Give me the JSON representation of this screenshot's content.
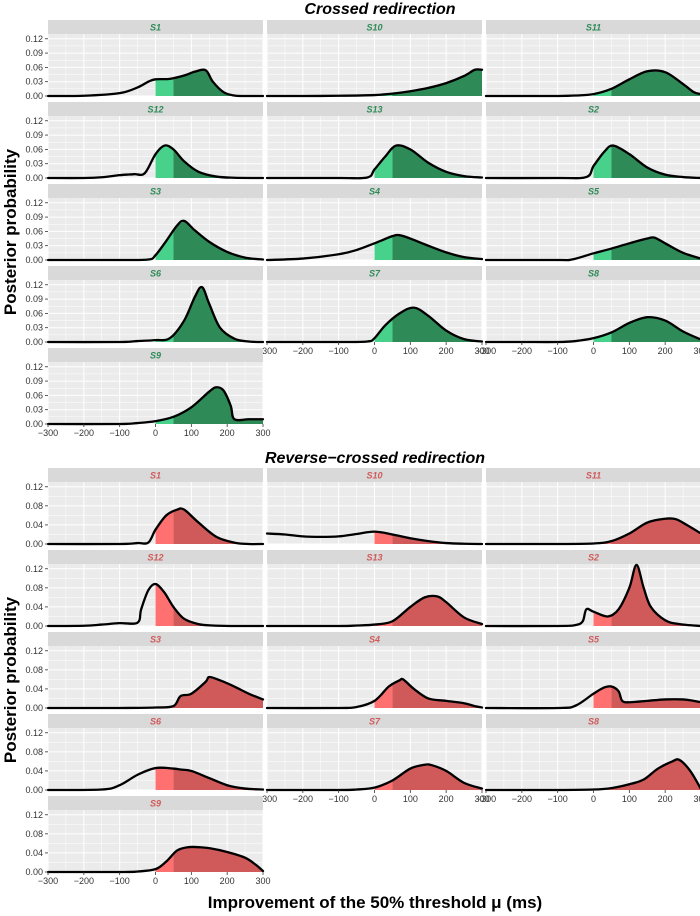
{
  "figure": {
    "ylabel": "Posterior probability",
    "xlabel": "Improvement of the 50% threshold μ (ms)"
  },
  "colors": {
    "panel_bg": "#ebebeb",
    "grid": "#ffffff",
    "strip_bg": "#d9d9d9",
    "crossed_dark": "#2e8b57",
    "crossed_light": "#48d18a",
    "crossed_label": "#2e8b57",
    "reverse_dark": "#d05a5a",
    "reverse_light": "#ff7070",
    "reverse_label": "#d05a5a",
    "curve": "#000000"
  },
  "chart_data": [
    {
      "type": "area",
      "title": "Crossed redirection",
      "xlabel": "Improvement of the 50% threshold μ (ms)",
      "ylabel": "Posterior probability",
      "xlim": [
        -300,
        300
      ],
      "ylim": [
        0,
        0.13
      ],
      "xticks": [
        -300,
        -200,
        -100,
        0,
        100,
        200,
        300
      ],
      "yticks": [
        0.0,
        0.03,
        0.06,
        0.09,
        0.12
      ],
      "ytick_labels": [
        "0.00",
        "0.03",
        "0.06",
        "0.09",
        "0.12"
      ],
      "shading": {
        "light_range": [
          0,
          50
        ],
        "dark_from": 50
      },
      "panels": [
        {
          "name": "S1",
          "x": [
            -300,
            -200,
            -100,
            -50,
            -20,
            0,
            40,
            80,
            110,
            140,
            160,
            190,
            220,
            250,
            300
          ],
          "y": [
            0,
            0.0005,
            0.006,
            0.018,
            0.03,
            0.035,
            0.036,
            0.043,
            0.051,
            0.054,
            0.03,
            0.008,
            0.001,
            0,
            0
          ]
        },
        {
          "name": "S10",
          "x": [
            -300,
            -200,
            -100,
            0,
            50,
            100,
            150,
            200,
            250,
            280,
            300
          ],
          "y": [
            0,
            0,
            0.0005,
            0.002,
            0.005,
            0.01,
            0.017,
            0.027,
            0.042,
            0.055,
            0.055
          ]
        },
        {
          "name": "S11",
          "x": [
            -300,
            -200,
            -100,
            -50,
            0,
            50,
            100,
            150,
            200,
            250,
            280,
            300
          ],
          "y": [
            0,
            0,
            0,
            0.001,
            0.004,
            0.015,
            0.035,
            0.052,
            0.05,
            0.025,
            0.008,
            0.004
          ]
        },
        {
          "name": "S12",
          "x": [
            -300,
            -200,
            -150,
            -100,
            -60,
            -30,
            0,
            25,
            50,
            80,
            120,
            170,
            220,
            300
          ],
          "y": [
            0,
            0,
            0.0015,
            0.006,
            0.008,
            0.01,
            0.05,
            0.068,
            0.06,
            0.035,
            0.013,
            0.003,
            0.0005,
            0
          ]
        },
        {
          "name": "S13",
          "x": [
            -300,
            -100,
            -20,
            0,
            30,
            60,
            100,
            150,
            200,
            250,
            300
          ],
          "y": [
            0,
            0,
            0.001,
            0.018,
            0.045,
            0.068,
            0.06,
            0.032,
            0.013,
            0.004,
            0.001
          ]
        },
        {
          "name": "S2",
          "x": [
            -300,
            -100,
            -20,
            0,
            30,
            55,
            100,
            150,
            200,
            250,
            300
          ],
          "y": [
            0,
            0,
            0.002,
            0.025,
            0.055,
            0.068,
            0.05,
            0.022,
            0.007,
            0.002,
            0
          ]
        },
        {
          "name": "S3",
          "x": [
            -300,
            -100,
            -20,
            0,
            30,
            60,
            80,
            110,
            150,
            200,
            250,
            300
          ],
          "y": [
            0,
            0,
            0.001,
            0.01,
            0.04,
            0.072,
            0.082,
            0.062,
            0.038,
            0.017,
            0.005,
            0.001
          ]
        },
        {
          "name": "S4",
          "x": [
            -300,
            -200,
            -100,
            -50,
            0,
            50,
            70,
            100,
            150,
            200,
            250,
            300
          ],
          "y": [
            0,
            0.003,
            0.012,
            0.021,
            0.035,
            0.05,
            0.052,
            0.045,
            0.03,
            0.016,
            0.006,
            0.002
          ]
        },
        {
          "name": "S5",
          "x": [
            -300,
            -100,
            -60,
            0,
            50,
            100,
            150,
            170,
            200,
            250,
            300
          ],
          "y": [
            0,
            0,
            0.001,
            0.014,
            0.024,
            0.035,
            0.045,
            0.047,
            0.035,
            0.015,
            0.003
          ]
        },
        {
          "name": "S6",
          "x": [
            -300,
            -100,
            -50,
            0,
            40,
            80,
            110,
            130,
            150,
            180,
            220,
            260,
            300
          ],
          "y": [
            0,
            0,
            0.002,
            0.004,
            0.008,
            0.045,
            0.095,
            0.115,
            0.08,
            0.03,
            0.007,
            0.001,
            0
          ]
        },
        {
          "name": "S7",
          "x": [
            -300,
            -100,
            -20,
            0,
            30,
            70,
            110,
            150,
            200,
            250,
            300
          ],
          "y": [
            0,
            0,
            0.001,
            0.008,
            0.035,
            0.06,
            0.072,
            0.055,
            0.024,
            0.006,
            0.001
          ]
        },
        {
          "name": "S8",
          "x": [
            -300,
            -200,
            -100,
            -50,
            0,
            50,
            100,
            150,
            200,
            250,
            300
          ],
          "y": [
            0,
            0,
            0,
            0.002,
            0.008,
            0.02,
            0.04,
            0.052,
            0.045,
            0.022,
            0.005
          ]
        },
        {
          "name": "S9",
          "x": [
            -300,
            -100,
            -50,
            0,
            50,
            100,
            150,
            170,
            190,
            210,
            220,
            260,
            300
          ],
          "y": [
            0,
            0,
            0.002,
            0.006,
            0.015,
            0.035,
            0.068,
            0.077,
            0.07,
            0.038,
            0.01,
            0.01,
            0.01
          ]
        }
      ]
    },
    {
      "type": "area",
      "title": "Reverse−crossed redirection",
      "xlabel": "Improvement of the 50% threshold μ (ms)",
      "ylabel": "Posterior probability",
      "xlim": [
        -300,
        300
      ],
      "ylim": [
        0,
        0.13
      ],
      "xticks": [
        -300,
        -200,
        -100,
        0,
        100,
        200,
        300
      ],
      "yticks": [
        0.0,
        0.04,
        0.08,
        0.12
      ],
      "ytick_labels": [
        "0.00",
        "0.04",
        "0.08",
        "0.12"
      ],
      "shading": {
        "light_range": [
          0,
          50
        ],
        "dark_from": 50
      },
      "panels": [
        {
          "name": "S1",
          "x": [
            -300,
            -100,
            -50,
            -20,
            0,
            30,
            60,
            80,
            120,
            170,
            220,
            260,
            300
          ],
          "y": [
            0,
            0,
            0.002,
            0.003,
            0.03,
            0.06,
            0.072,
            0.072,
            0.045,
            0.015,
            0.003,
            0,
            0
          ]
        },
        {
          "name": "S10",
          "x": [
            -300,
            -250,
            -200,
            -150,
            -100,
            -50,
            0,
            50,
            100,
            150,
            200,
            250,
            300
          ],
          "y": [
            0.022,
            0.02,
            0.016,
            0.015,
            0.016,
            0.021,
            0.026,
            0.02,
            0.012,
            0.006,
            0.002,
            0.0005,
            0
          ]
        },
        {
          "name": "S11",
          "x": [
            -300,
            -100,
            0,
            50,
            100,
            150,
            200,
            230,
            260,
            300
          ],
          "y": [
            0,
            0,
            0.001,
            0.006,
            0.022,
            0.045,
            0.053,
            0.052,
            0.04,
            0.022
          ]
        },
        {
          "name": "S12",
          "x": [
            -300,
            -200,
            -150,
            -100,
            -50,
            -40,
            -20,
            0,
            25,
            50,
            80,
            120,
            160,
            220,
            300
          ],
          "y": [
            0,
            0.0005,
            0.003,
            0.006,
            0.007,
            0.035,
            0.075,
            0.088,
            0.07,
            0.04,
            0.015,
            0.004,
            0.001,
            0,
            0
          ]
        },
        {
          "name": "S13",
          "x": [
            -300,
            -100,
            -50,
            0,
            50,
            100,
            140,
            175,
            200,
            250,
            300
          ],
          "y": [
            0,
            0,
            0.001,
            0.003,
            0.01,
            0.04,
            0.06,
            0.062,
            0.05,
            0.018,
            0.004
          ]
        },
        {
          "name": "S2",
          "x": [
            -300,
            -100,
            -50,
            -30,
            -20,
            0,
            40,
            70,
            100,
            120,
            140,
            160,
            200,
            240,
            300
          ],
          "y": [
            0,
            0,
            0.002,
            0.01,
            0.035,
            0.03,
            0.02,
            0.035,
            0.08,
            0.128,
            0.08,
            0.04,
            0.012,
            0.004,
            0
          ]
        },
        {
          "name": "S3",
          "x": [
            -300,
            -100,
            0,
            50,
            70,
            100,
            140,
            150,
            180,
            220,
            260,
            300
          ],
          "y": [
            0,
            0,
            0.001,
            0.004,
            0.025,
            0.03,
            0.055,
            0.065,
            0.058,
            0.045,
            0.03,
            0.018
          ]
        },
        {
          "name": "S4",
          "x": [
            -300,
            -100,
            -50,
            0,
            40,
            70,
            80,
            110,
            150,
            200,
            250,
            280,
            300
          ],
          "y": [
            0,
            0,
            0.002,
            0.015,
            0.045,
            0.058,
            0.06,
            0.04,
            0.02,
            0.015,
            0.01,
            0.004,
            0.001
          ]
        },
        {
          "name": "S5",
          "x": [
            -300,
            -100,
            -50,
            0,
            30,
            50,
            70,
            80,
            100,
            150,
            200,
            250,
            280,
            300
          ],
          "y": [
            0,
            0,
            0.005,
            0.03,
            0.043,
            0.045,
            0.035,
            0.015,
            0.012,
            0.015,
            0.018,
            0.018,
            0.015,
            0.012
          ]
        },
        {
          "name": "S6",
          "x": [
            -300,
            -150,
            -100,
            -50,
            0,
            50,
            70,
            100,
            150,
            200,
            250,
            300
          ],
          "y": [
            0,
            0.001,
            0.01,
            0.032,
            0.046,
            0.045,
            0.043,
            0.04,
            0.025,
            0.01,
            0.003,
            0.001
          ]
        },
        {
          "name": "S7",
          "x": [
            -300,
            -100,
            -50,
            0,
            50,
            100,
            140,
            160,
            200,
            250,
            300
          ],
          "y": [
            0,
            0,
            0.001,
            0.005,
            0.02,
            0.045,
            0.053,
            0.052,
            0.04,
            0.015,
            0.003
          ]
        },
        {
          "name": "S8",
          "x": [
            -300,
            -100,
            0,
            50,
            100,
            140,
            180,
            220,
            240,
            270,
            300
          ],
          "y": [
            0,
            0,
            0.001,
            0.004,
            0.012,
            0.022,
            0.045,
            0.06,
            0.063,
            0.04,
            0.002
          ]
        },
        {
          "name": "S9",
          "x": [
            -300,
            -100,
            -50,
            0,
            30,
            60,
            90,
            120,
            150,
            200,
            250,
            280,
            300
          ],
          "y": [
            0,
            0,
            0.001,
            0.006,
            0.022,
            0.045,
            0.052,
            0.052,
            0.05,
            0.042,
            0.03,
            0.015,
            0.002
          ]
        }
      ]
    }
  ]
}
